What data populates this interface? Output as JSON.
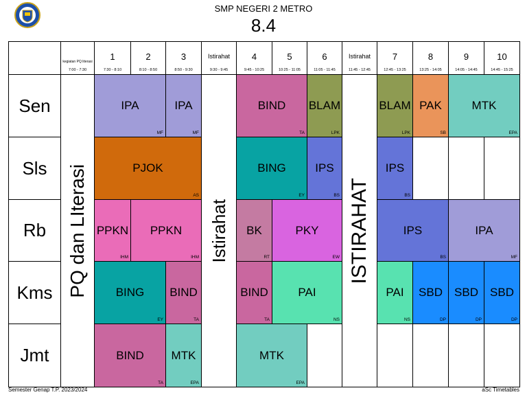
{
  "header": {
    "school": "SMP NEGERI 2 METRO",
    "class": "8.4"
  },
  "columns": [
    {
      "label": "kegiatan PQ literasi",
      "time": "7:00 - 7:30",
      "banner": "PQ dan LIterasi"
    },
    {
      "label": "1",
      "time": "7:30 - 8:10"
    },
    {
      "label": "2",
      "time": "8:10 - 8:50"
    },
    {
      "label": "3",
      "time": "8:50 - 9:30"
    },
    {
      "label": "Istirahat",
      "time": "9:30 - 9:45",
      "banner": "Istirahat"
    },
    {
      "label": "4",
      "time": "9:45 - 10:25"
    },
    {
      "label": "5",
      "time": "10:25 - 11:05"
    },
    {
      "label": "6",
      "time": "11:05 - 11:45"
    },
    {
      "label": "Istirahat",
      "time": "11:45 - 12:45",
      "banner": "ISTIRAHAT"
    },
    {
      "label": "7",
      "time": "12:45 - 13:25"
    },
    {
      "label": "8",
      "time": "13:25 - 14:05"
    },
    {
      "label": "9",
      "time": "14:05 - 14:45"
    },
    {
      "label": "10",
      "time": "14:45 - 15:25"
    }
  ],
  "rows": [
    {
      "day": "Sen",
      "lessons": [
        {
          "subject": "IPA",
          "teacher": "MF",
          "color": "#a09cd8",
          "periods": [
            "1",
            "2"
          ]
        },
        {
          "subject": "IPA",
          "teacher": "MF",
          "color": "#a09cd8",
          "periods": [
            "3"
          ]
        },
        {
          "subject": "BIND",
          "teacher": "TA",
          "color": "#c9679f",
          "periods": [
            "4",
            "5"
          ]
        },
        {
          "subject": "BLAM",
          "teacher": "LPK",
          "color": "#8e9b52",
          "periods": [
            "6"
          ]
        },
        {
          "subject": "BLAM",
          "teacher": "LPK",
          "color": "#8e9b52",
          "periods": [
            "7"
          ]
        },
        {
          "subject": "PAK",
          "teacher": "SB",
          "color": "#ea945a",
          "periods": [
            "8"
          ]
        },
        {
          "subject": "MTK",
          "teacher": "EPA",
          "color": "#72cdc0",
          "periods": [
            "9",
            "10"
          ]
        }
      ]
    },
    {
      "day": "Sls",
      "lessons": [
        {
          "subject": "PJOK",
          "teacher": "AS",
          "color": "#d06a0c",
          "periods": [
            "1",
            "3"
          ]
        },
        {
          "subject": "BING",
          "teacher": "EY",
          "color": "#08a3a3",
          "periods": [
            "4",
            "5"
          ]
        },
        {
          "subject": "IPS",
          "teacher": "BS",
          "color": "#6474d8",
          "periods": [
            "6"
          ]
        },
        {
          "subject": "IPS",
          "teacher": "BS",
          "color": "#6474d8",
          "periods": [
            "7"
          ]
        }
      ]
    },
    {
      "day": "Rb",
      "lessons": [
        {
          "subject": "PPKN",
          "teacher": "IHM",
          "color": "#ea6cb8",
          "periods": [
            "1"
          ]
        },
        {
          "subject": "PPKN",
          "teacher": "IHM",
          "color": "#ea6cb8",
          "periods": [
            "2",
            "3"
          ]
        },
        {
          "subject": "BK",
          "teacher": "RT",
          "color": "#c47ba2",
          "periods": [
            "4"
          ]
        },
        {
          "subject": "PKY",
          "teacher": "EW",
          "color": "#d964e0",
          "periods": [
            "5",
            "6"
          ]
        },
        {
          "subject": "IPS",
          "teacher": "BS",
          "color": "#6474d8",
          "periods": [
            "7",
            "8"
          ]
        },
        {
          "subject": "IPA",
          "teacher": "MF",
          "color": "#a09cd8",
          "periods": [
            "9",
            "10"
          ]
        }
      ]
    },
    {
      "day": "Kms",
      "lessons": [
        {
          "subject": "BING",
          "teacher": "EY",
          "color": "#08a3a3",
          "periods": [
            "1",
            "2"
          ]
        },
        {
          "subject": "BIND",
          "teacher": "TA",
          "color": "#c9679f",
          "periods": [
            "3"
          ]
        },
        {
          "subject": "BIND",
          "teacher": "TA",
          "color": "#c9679f",
          "periods": [
            "4"
          ]
        },
        {
          "subject": "PAI",
          "teacher": "NS",
          "color": "#58e2b0",
          "periods": [
            "5",
            "6"
          ]
        },
        {
          "subject": "PAI",
          "teacher": "NS",
          "color": "#58e2b0",
          "periods": [
            "7"
          ]
        },
        {
          "subject": "SBD",
          "teacher": "DP",
          "color": "#1a8cff",
          "periods": [
            "8"
          ]
        },
        {
          "subject": "SBD",
          "teacher": "DP",
          "color": "#1a8cff",
          "periods": [
            "9"
          ]
        },
        {
          "subject": "SBD",
          "teacher": "DP",
          "color": "#1a8cff",
          "periods": [
            "10"
          ]
        }
      ]
    },
    {
      "day": "Jmt",
      "lessons": [
        {
          "subject": "BIND",
          "teacher": "TA",
          "color": "#c9679f",
          "periods": [
            "1",
            "2"
          ]
        },
        {
          "subject": "MTK",
          "teacher": "EPA",
          "color": "#72cdc0",
          "periods": [
            "3"
          ]
        },
        {
          "subject": "MTK",
          "teacher": "EPA",
          "color": "#72cdc0",
          "periods": [
            "4",
            "5"
          ]
        }
      ]
    }
  ],
  "footer": {
    "left": "Semester Genap T.P. 2023/2024",
    "right": "aSc Timetables"
  }
}
